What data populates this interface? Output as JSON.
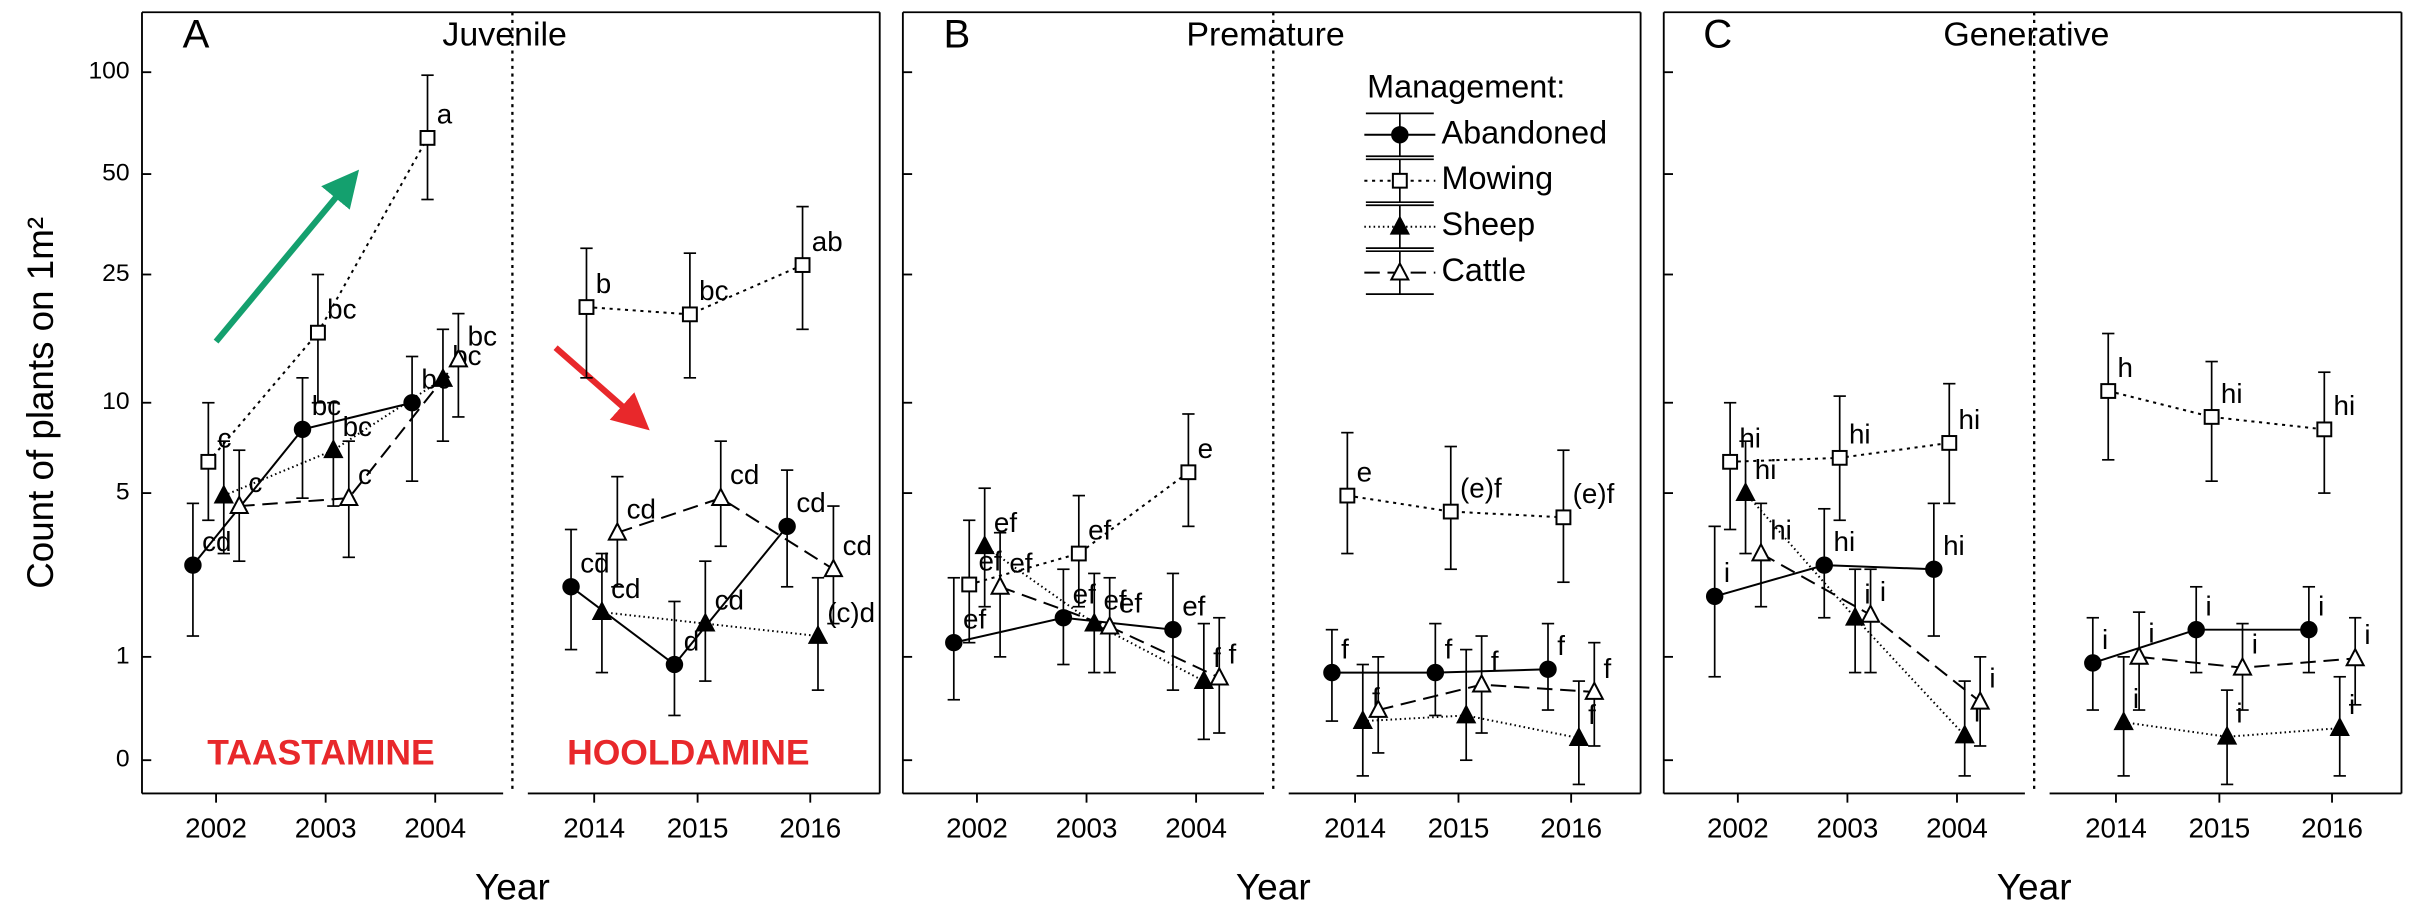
{
  "chart_data": [
    {
      "type": "line",
      "panel": "A",
      "title": "Juvenile",
      "xlabel": "Year",
      "ylabel": "Count of plants on 1m²",
      "yscale": "log1p",
      "ylim": [
        -0.2,
        150
      ],
      "yticks": [
        0,
        1,
        5,
        10,
        25,
        50,
        100
      ],
      "categories": [
        [
          "2002",
          "2003",
          "2004"
        ],
        [
          "2014",
          "2015",
          "2016"
        ]
      ],
      "annotations": [
        {
          "text": "TAASTAMINE",
          "color": "#e8282b"
        },
        {
          "text": "HOOLDAMINE",
          "color": "#e8282b"
        }
      ],
      "series": [
        {
          "name": "Abandoned",
          "color": "#000000",
          "marker": "circle",
          "filled": true,
          "line": "solid",
          "values": [
            [
              2.7,
              8.2,
              10
            ],
            [
              2.2,
              0.9,
              3.8
            ]
          ],
          "lower": [
            [
              1.3,
              4.8,
              5.5
            ],
            [
              1.1,
              0.35,
              2.2
            ]
          ],
          "upper": [
            [
              4.6,
              12,
              14
            ],
            [
              3.7,
              1.9,
              6.0
            ]
          ],
          "point_labels": [
            [
              "cd",
              "bc",
              "bc"
            ],
            [
              "cd",
              "d",
              "cd"
            ]
          ]
        },
        {
          "name": "Mowing",
          "color": "#000000",
          "marker": "square",
          "filled": false,
          "line": "dotted",
          "values": [
            [
              6.4,
              16.6,
              64
            ],
            [
              19.9,
              18.9,
              26.7
            ]
          ],
          "lower": [
            [
              4,
              10,
              42
            ],
            [
              12,
              12,
              17
            ]
          ],
          "upper": [
            [
              10,
              25,
              98
            ],
            [
              30,
              29,
              40
            ]
          ],
          "point_labels": [
            [
              "c",
              "bc",
              "a"
            ],
            [
              "b",
              "bc",
              "ab"
            ]
          ]
        },
        {
          "name": "Sheep",
          "color": "#000000",
          "marker": "triangle",
          "filled": true,
          "line": "finedot",
          "values": [
            [
              4.9,
              7.0,
              11.9
            ],
            [
              1.7,
              1.5,
              1.3
            ]
          ],
          "lower": [
            [
              3,
              4.5,
              7.5
            ],
            [
              0.8,
              0.7,
              0.6
            ]
          ],
          "upper": [
            [
              7.5,
              10,
              17
            ],
            [
              3,
              2.8,
              2.4
            ]
          ],
          "point_labels": [
            [
              null,
              "bc",
              "bc"
            ],
            [
              "cd",
              "cd",
              "(c)d"
            ]
          ]
        },
        {
          "name": "Cattle",
          "color": "#000000",
          "marker": "triangle",
          "filled": false,
          "line": "dashed",
          "values": [
            [
              4.5,
              4.8,
              13.7
            ],
            [
              3.6,
              4.8,
              2.6
            ]
          ],
          "lower": [
            [
              2.8,
              2.9,
              9
            ],
            [
              2.2,
              3.2,
              1.5
            ]
          ],
          "upper": [
            [
              7,
              7.5,
              19
            ],
            [
              5.7,
              7.5,
              4.5
            ]
          ],
          "point_labels": [
            [
              "c",
              "c",
              "bc"
            ],
            [
              "cd",
              "cd",
              "cd"
            ]
          ]
        }
      ]
    },
    {
      "type": "line",
      "panel": "B",
      "title": "Premature",
      "xlabel": "Year",
      "yscale": "log1p",
      "ylim": [
        -0.2,
        150
      ],
      "yticks": [
        0,
        1,
        5,
        10,
        25,
        50,
        100
      ],
      "categories": [
        [
          "2002",
          "2003",
          "2004"
        ],
        [
          "2014",
          "2015",
          "2016"
        ]
      ],
      "legend": "top-right",
      "legend_title": "Management:",
      "series": [
        {
          "name": "Abandoned",
          "color": "#000000",
          "marker": "circle",
          "filled": true,
          "line": "solid",
          "values": [
            [
              1.2,
              1.6,
              1.4
            ],
            [
              0.8,
              0.8,
              0.84
            ]
          ],
          "lower": [
            [
              0.5,
              0.9,
              0.6
            ],
            [
              0.3,
              0.35,
              0.4
            ]
          ],
          "upper": [
            [
              2.4,
              2.6,
              2.5
            ],
            [
              1.4,
              1.5,
              1.5
            ]
          ],
          "point_labels": [
            [
              "ef",
              "ef",
              "ef"
            ],
            [
              "f",
              "f",
              "f"
            ]
          ]
        },
        {
          "name": "Mowing",
          "color": "#000000",
          "marker": "square",
          "filled": false,
          "line": "dotted",
          "values": [
            [
              2.25,
              3.0,
              5.9
            ],
            [
              4.9,
              4.3,
              4.1
            ]
          ],
          "lower": [
            [
              1.2,
              1.8,
              3.8
            ],
            [
              3,
              2.6,
              2.3
            ]
          ],
          "upper": [
            [
              4,
              4.9,
              9.2
            ],
            [
              8,
              7.2,
              7
            ]
          ],
          "point_labels": [
            [
              "ef",
              "ef",
              "e"
            ],
            [
              "e",
              "(e)f",
              "(e)f"
            ]
          ]
        },
        {
          "name": "Sheep",
          "color": "#000000",
          "marker": "triangle",
          "filled": true,
          "line": "finedot",
          "values": [
            [
              3.2,
              1.5,
              0.7
            ],
            [
              0.3,
              0.35,
              0.16
            ]
          ],
          "lower": [
            [
              1.8,
              0.8,
              0.15
            ],
            [
              -0.1,
              0,
              -0.15
            ]
          ],
          "upper": [
            [
              5.2,
              2.5,
              1.5
            ],
            [
              0.9,
              1.1,
              0.7
            ]
          ],
          "point_labels": [
            [
              "ef",
              "ef",
              "f"
            ],
            [
              "f",
              null,
              "f"
            ]
          ]
        },
        {
          "name": "Cattle",
          "color": "#000000",
          "marker": "triangle",
          "filled": false,
          "line": "dashed",
          "values": [
            [
              2.2,
              1.45,
              0.74
            ],
            [
              0.4,
              0.66,
              0.58
            ]
          ],
          "lower": [
            [
              1,
              0.8,
              0.2
            ],
            [
              0.05,
              0.2,
              0.1
            ]
          ],
          "upper": [
            [
              3.6,
              2.4,
              1.6
            ],
            [
              1,
              1.3,
              1.2
            ]
          ],
          "point_labels": [
            [
              "ef",
              "ef",
              "f"
            ],
            [
              null,
              "f",
              "f"
            ]
          ]
        }
      ]
    },
    {
      "type": "line",
      "panel": "C",
      "title": "Generative",
      "xlabel": "Year",
      "yscale": "log1p",
      "ylim": [
        -0.2,
        150
      ],
      "yticks": [
        0,
        1,
        5,
        10,
        25,
        50,
        100
      ],
      "categories": [
        [
          "2002",
          "2003",
          "2004"
        ],
        [
          "2014",
          "2015",
          "2016"
        ]
      ],
      "series": [
        {
          "name": "Abandoned",
          "color": "#000000",
          "marker": "circle",
          "filled": true,
          "line": "solid",
          "values": [
            [
              2.0,
              2.7,
              2.6
            ],
            [
              0.92,
              1.4,
              1.4
            ]
          ],
          "lower": [
            [
              0.75,
              1.6,
              1.3
            ],
            [
              0.4,
              0.8,
              0.8
            ]
          ],
          "upper": [
            [
              3.8,
              4.4,
              4.6
            ],
            [
              1.6,
              2.2,
              2.2
            ]
          ],
          "point_labels": [
            [
              "i",
              "hi",
              "hi"
            ],
            [
              "i",
              "i",
              "i"
            ]
          ]
        },
        {
          "name": "Mowing",
          "color": "#000000",
          "marker": "square",
          "filled": false,
          "line": "dotted",
          "values": [
            [
              6.4,
              6.6,
              7.4
            ],
            [
              10.9,
              9.0,
              8.2
            ]
          ],
          "lower": [
            [
              3.7,
              4,
              4.6
            ],
            [
              6.5,
              5.5,
              5
            ]
          ],
          "upper": [
            [
              10,
              10.5,
              11.5
            ],
            [
              16.5,
              13.5,
              12.5
            ]
          ],
          "point_labels": [
            [
              "hi",
              "hi",
              "hi"
            ],
            [
              "h",
              "hi",
              "hi"
            ]
          ]
        },
        {
          "name": "Sheep",
          "color": "#000000",
          "marker": "triangle",
          "filled": true,
          "line": "finedot",
          "values": [
            [
              5.0,
              1.6,
              0.18
            ],
            [
              0.29,
              0.17,
              0.24
            ]
          ],
          "lower": [
            [
              3,
              0.8,
              -0.1
            ],
            [
              -0.1,
              -0.15,
              -0.1
            ]
          ],
          "upper": [
            [
              7.5,
              2.6,
              0.7
            ],
            [
              1,
              0.6,
              0.75
            ]
          ],
          "point_labels": [
            [
              "hi",
              "i",
              "i"
            ],
            [
              "i",
              "i",
              "i"
            ]
          ]
        },
        {
          "name": "Cattle",
          "color": "#000000",
          "marker": "triangle",
          "filled": false,
          "line": "dashed",
          "values": [
            [
              3.0,
              1.65,
              0.48
            ],
            [
              1.0,
              0.86,
              0.98
            ]
          ],
          "lower": [
            [
              1.8,
              0.8,
              0.1
            ],
            [
              0.4,
              0.4,
              0.45
            ]
          ],
          "upper": [
            [
              4.6,
              2.6,
              1
            ],
            [
              1.7,
              1.5,
              1.6
            ]
          ],
          "point_labels": [
            [
              "hi",
              "i",
              "i"
            ],
            [
              "i",
              "i",
              "i"
            ]
          ]
        }
      ]
    }
  ]
}
